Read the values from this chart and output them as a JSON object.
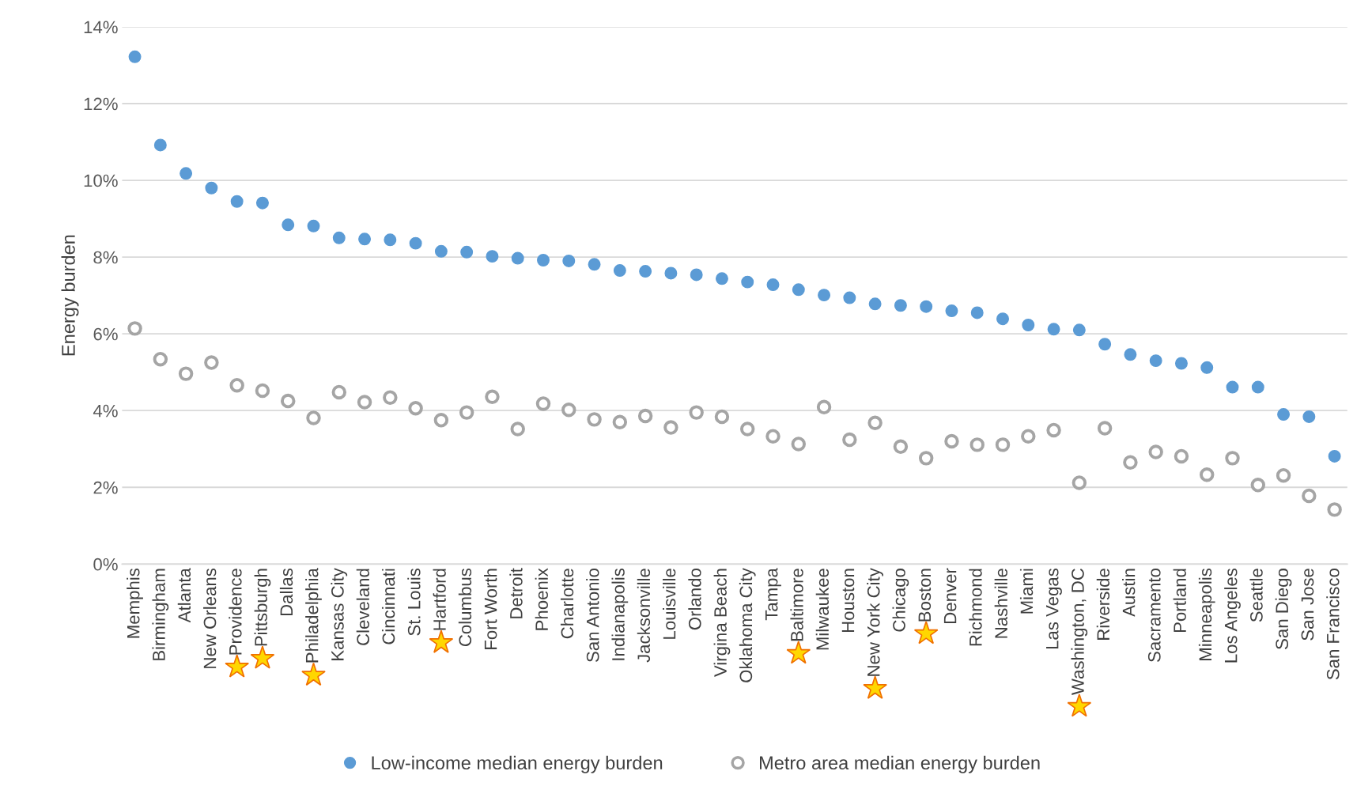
{
  "chart_data": {
    "type": "scatter",
    "ylabel": "Energy burden",
    "categories": [
      "Memphis",
      "Birmingham",
      "Atlanta",
      "New Orleans",
      "Providence",
      "Pittsburgh",
      "Dallas",
      "Philadelphia",
      "Kansas City",
      "Cleveland",
      "Cincinnati",
      "St. Louis",
      "Hartford",
      "Columbus",
      "Fort Worth",
      "Detroit",
      "Phoenix",
      "Charlotte",
      "San Antonio",
      "Indianapolis",
      "Jacksonville",
      "Louisville",
      "Orlando",
      "Virgina Beach",
      "Oklahoma City",
      "Tampa",
      "Baltimore",
      "Milwaukee",
      "Houston",
      "New York City",
      "Chicago",
      "Boston",
      "Denver",
      "Richmond",
      "Nashville",
      "Miami",
      "Las Vegas",
      "Washington, DC",
      "Riverside",
      "Austin",
      "Sacramento",
      "Portland",
      "Minneapolis",
      "Los Angeles",
      "Seattle",
      "San Diego",
      "San Jose",
      "San Francisco"
    ],
    "series": [
      {
        "name": "Low-income median energy burden",
        "color": "#5b9bd5",
        "values": [
          13.22,
          10.92,
          10.18,
          9.8,
          9.45,
          9.41,
          8.84,
          8.81,
          8.5,
          8.47,
          8.45,
          8.36,
          8.15,
          8.13,
          8.02,
          7.97,
          7.92,
          7.9,
          7.81,
          7.65,
          7.63,
          7.58,
          7.54,
          7.44,
          7.35,
          7.28,
          7.15,
          7.01,
          6.94,
          6.78,
          6.74,
          6.71,
          6.6,
          6.55,
          6.39,
          6.23,
          6.12,
          6.1,
          5.73,
          5.46,
          5.3,
          5.23,
          5.12,
          4.61,
          4.61,
          3.9,
          3.84,
          2.81
        ]
      },
      {
        "name": "Metro area median energy burden",
        "color": "#a5a5a5",
        "values": [
          6.14,
          5.34,
          4.96,
          5.25,
          4.66,
          4.52,
          4.25,
          3.81,
          4.48,
          4.22,
          4.34,
          4.06,
          3.75,
          3.95,
          4.36,
          3.52,
          4.18,
          4.02,
          3.77,
          3.7,
          3.86,
          3.56,
          3.95,
          3.84,
          3.52,
          3.33,
          3.13,
          4.09,
          3.24,
          3.68,
          3.06,
          2.76,
          3.2,
          3.11,
          3.11,
          3.33,
          3.49,
          2.12,
          3.54,
          2.65,
          2.92,
          2.81,
          2.33,
          2.76,
          2.06,
          2.31,
          1.78,
          1.42
        ]
      }
    ],
    "ylim": [
      0,
      14
    ],
    "yticks": [
      {
        "value": 0,
        "label": "0%"
      },
      {
        "value": 2,
        "label": "2%"
      },
      {
        "value": 4,
        "label": "4%"
      },
      {
        "value": 6,
        "label": "6%"
      },
      {
        "value": 8,
        "label": "8%"
      },
      {
        "value": 10,
        "label": "10%"
      },
      {
        "value": 12,
        "label": "12%"
      },
      {
        "value": 14,
        "label": "14%"
      }
    ],
    "grid": "y",
    "legend": "bottom",
    "marker": "circle"
  }
}
